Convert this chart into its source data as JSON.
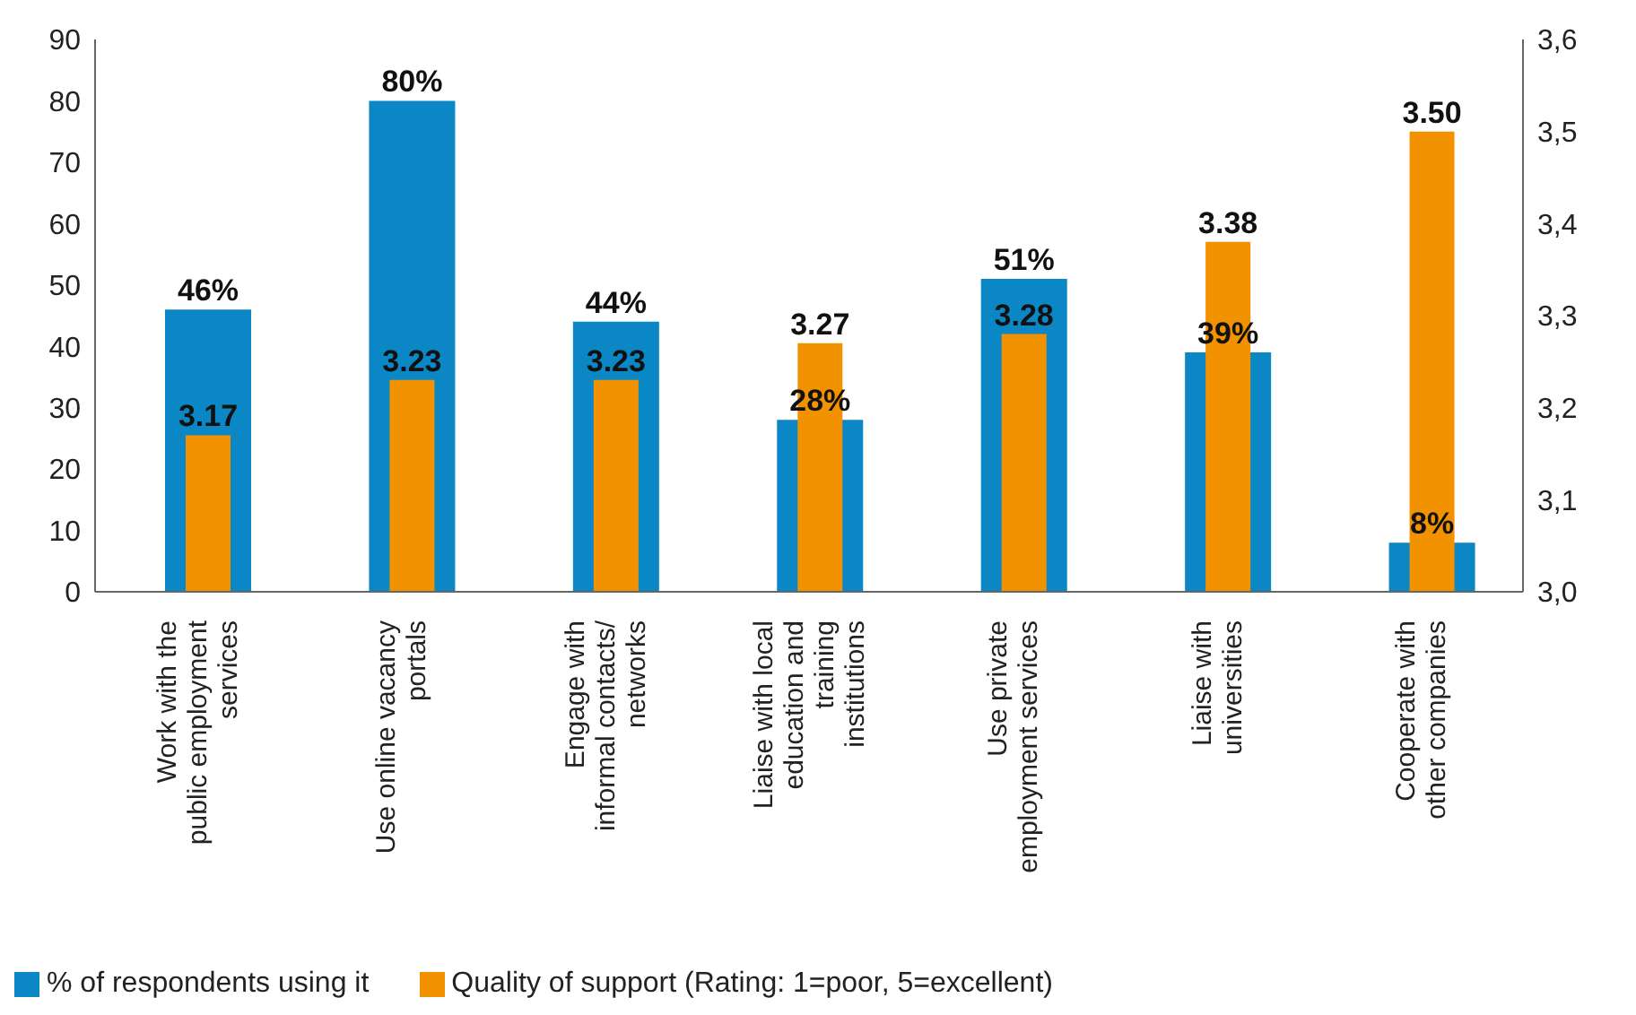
{
  "chart_data": {
    "type": "bar",
    "categories": [
      "Work with the public employment services",
      "Use online vacancy portals",
      "Engage with informal contacts/ networks",
      "Liaise with local education and training institutions",
      "Use private employment services",
      "Liaise with universities",
      "Cooperate with other companies"
    ],
    "series": [
      {
        "name": "% of respondents using it",
        "color": "#0a87c4",
        "values": [
          46,
          80,
          44,
          28,
          51,
          39,
          8
        ],
        "value_labels": [
          "46%",
          "80%",
          "44%",
          "28%",
          "51%",
          "39%",
          "8%"
        ]
      },
      {
        "name": "Quality of support (Rating: 1=poor, 5=excellent)",
        "color": "#f39200",
        "axis": "y2",
        "values": [
          3.17,
          3.23,
          3.23,
          3.27,
          3.28,
          3.38,
          3.5
        ],
        "value_labels": [
          "3.17",
          "3.23",
          "3.23",
          "3.27",
          "3.28",
          "3.38",
          "3.50"
        ]
      }
    ],
    "ylim": [
      0,
      90
    ],
    "yticks": [
      0,
      10,
      20,
      30,
      40,
      50,
      60,
      70,
      80,
      90
    ],
    "y2lim": [
      3.0,
      3.6
    ],
    "y2ticks": [
      {
        "value": 3.0,
        "label": "3,0"
      },
      {
        "value": 3.1,
        "label": "3,1"
      },
      {
        "value": 3.2,
        "label": "3,2"
      },
      {
        "value": 3.3,
        "label": "3,3"
      },
      {
        "value": 3.4,
        "label": "3,4"
      },
      {
        "value": 3.5,
        "label": "3,5"
      },
      {
        "value": 3.6,
        "label": "3,6"
      }
    ],
    "grid": false,
    "legend": "bottom left"
  }
}
